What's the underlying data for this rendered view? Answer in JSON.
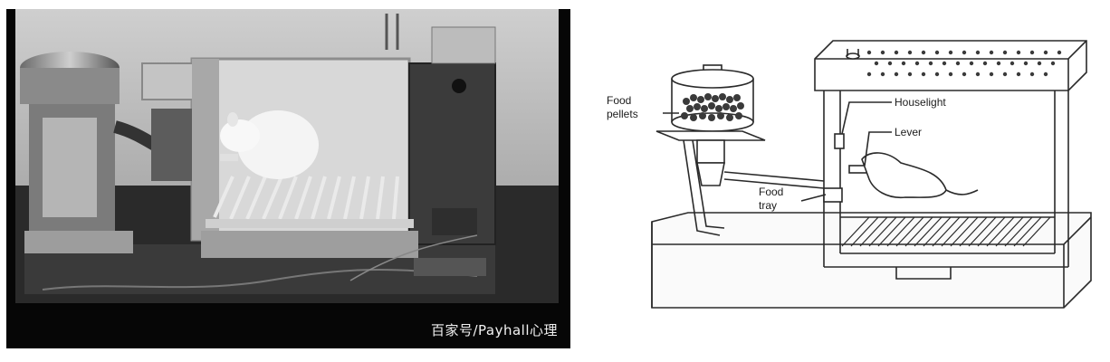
{
  "photo": {
    "watermark": "百家号/Payhall心理"
  },
  "diagram": {
    "labels": {
      "food_pellets": [
        "Food",
        "pellets"
      ],
      "houselight": "Houselight",
      "lever": "Lever",
      "food_tray": [
        "Food",
        "tray"
      ]
    }
  }
}
